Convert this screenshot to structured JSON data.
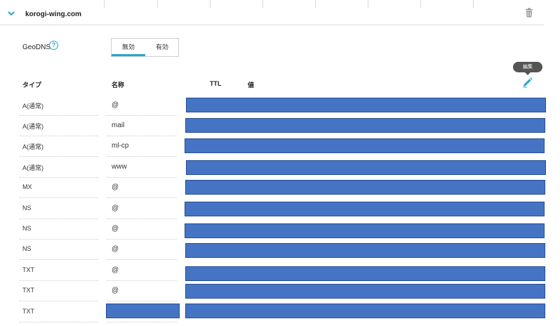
{
  "domain": "korogi-wing.com",
  "geodns": {
    "label": "GeoDNS",
    "help_icon": "?",
    "options": [
      "無効",
      "有効"
    ],
    "selected": "無効"
  },
  "tooltip": "編集",
  "columns": {
    "type": "タイプ",
    "name": "名称",
    "ttl": "TTL",
    "value": "値"
  },
  "records": [
    {
      "type": "A(通常)",
      "name": "@"
    },
    {
      "type": "A(通常)",
      "name": "mail"
    },
    {
      "type": "A(通常)",
      "name": "ml-cp"
    },
    {
      "type": "A(通常)",
      "name": "www"
    },
    {
      "type": "MX",
      "name": "@"
    },
    {
      "type": "NS",
      "name": "@"
    },
    {
      "type": "NS",
      "name": "@"
    },
    {
      "type": "NS",
      "name": "@"
    },
    {
      "type": "TXT",
      "name": "@"
    },
    {
      "type": "TXT",
      "name": "@"
    },
    {
      "type": "TXT",
      "name": ""
    }
  ],
  "colors": {
    "accent": "#2aa7c9",
    "redaction": "#4674c4"
  },
  "icons": [
    "chevron-down-icon",
    "trash-icon",
    "help-icon",
    "pencil-icon"
  ]
}
